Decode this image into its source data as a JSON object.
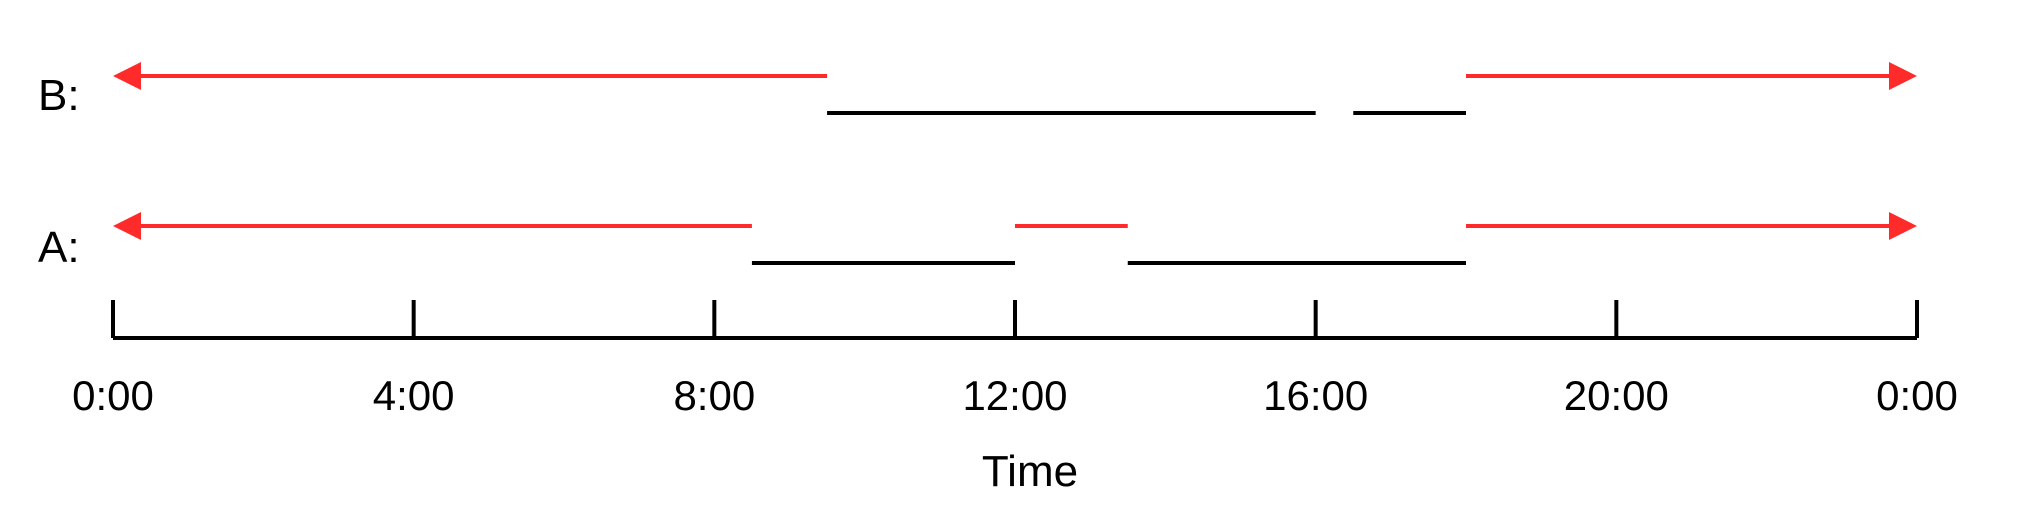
{
  "chart_data": {
    "type": "timeline",
    "xlabel": "Time",
    "ticks": [
      "0:00",
      "4:00",
      "8:00",
      "12:00",
      "16:00",
      "20:00",
      "0:00"
    ],
    "x_range_hours": [
      0,
      24
    ],
    "rows": [
      {
        "label": "A:",
        "black_intervals": [
          [
            8.5,
            12.0
          ],
          [
            13.5,
            18.0
          ]
        ],
        "red_intervals": [
          [
            0,
            8.5
          ],
          [
            12.0,
            13.5
          ],
          [
            18.0,
            24
          ]
        ],
        "red_arrow_left": true,
        "red_arrow_right": true
      },
      {
        "label": "B:",
        "black_intervals": [
          [
            9.5,
            16.0
          ],
          [
            16.5,
            18.0
          ]
        ],
        "red_intervals": [
          [
            0,
            9.5
          ],
          [
            18.0,
            24
          ]
        ],
        "red_arrow_left": true,
        "red_arrow_right": true
      }
    ],
    "colors": {
      "red": "#ff2a2a",
      "black": "#000000"
    }
  }
}
